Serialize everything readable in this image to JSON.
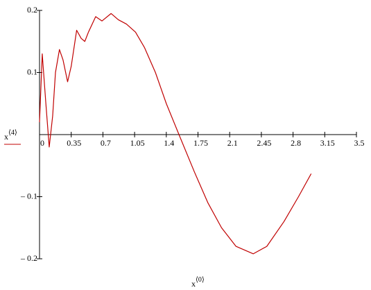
{
  "chart_data": {
    "type": "line",
    "x_label": {
      "base": "x",
      "superscript": "⟨0⟩"
    },
    "y_label": {
      "base": "x",
      "superscript": "⟨4⟩"
    },
    "x": [
      0,
      0.03,
      0.07,
      0.107,
      0.145,
      0.176,
      0.22,
      0.26,
      0.31,
      0.35,
      0.41,
      0.46,
      0.5,
      0.54,
      0.62,
      0.69,
      0.79,
      0.87,
      0.96,
      1.06,
      1.16,
      1.28,
      1.4,
      1.54,
      1.71,
      1.86,
      2.01,
      2.17,
      2.36,
      2.51,
      2.7,
      2.86,
      3.0
    ],
    "series": [
      {
        "color": "#c00000",
        "values": [
          0.02,
          0.13,
          0.05,
          -0.02,
          0.03,
          0.1,
          0.137,
          0.12,
          0.085,
          0.11,
          0.168,
          0.155,
          0.15,
          0.165,
          0.19,
          0.183,
          0.195,
          0.185,
          0.178,
          0.165,
          0.14,
          0.1,
          0.05,
          0.0,
          -0.06,
          -0.11,
          -0.15,
          -0.18,
          -0.192,
          -0.18,
          -0.14,
          -0.1,
          -0.063
        ]
      }
    ],
    "xlim": [
      0,
      3.5
    ],
    "ylim": [
      -0.2,
      0.2
    ],
    "xticks": [
      0,
      0.35,
      0.7,
      1.05,
      1.4,
      1.75,
      2.1,
      2.45,
      2.8,
      3.15,
      3.5
    ],
    "yticks": [
      {
        "value": -0.2,
        "label": "– 0.2"
      },
      {
        "value": -0.1,
        "label": "– 0.1"
      },
      0.1,
      0.2
    ]
  }
}
